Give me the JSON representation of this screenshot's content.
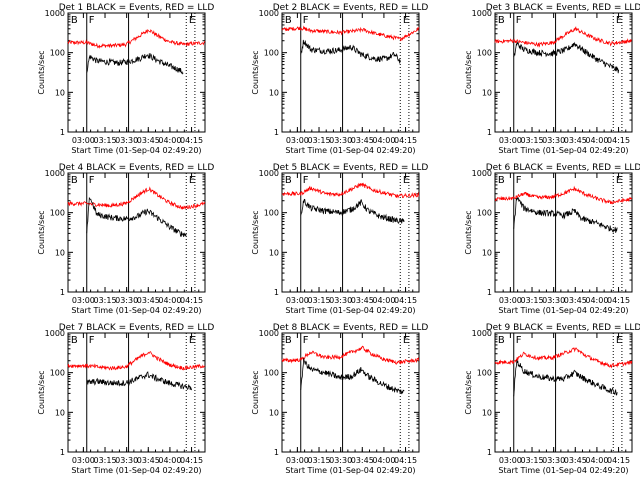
{
  "chart_data": {
    "type": "line",
    "layout": "3x3 grid",
    "xlabel": "Start Time (01-Sep-04 02:49:20)",
    "ylabel": "Counts/sec",
    "y_scale": "log",
    "ylim": [
      1,
      1000
    ],
    "y_ticks": [
      "1",
      "10",
      "100",
      "1000"
    ],
    "x_ticks": [
      "03:00",
      "03:15",
      "03:30",
      "03:45",
      "04:00",
      "04:15"
    ],
    "x_tick_minutes": [
      10.67,
      25.67,
      40.67,
      55.67,
      70.67,
      85.67
    ],
    "x_range_minutes": [
      0,
      95
    ],
    "series_colors": {
      "Events": "#000000",
      "LLD": "#ff0000"
    },
    "markers": {
      "solid_minutes": [
        13,
        42
      ],
      "dotted_minutes": [
        82,
        88
      ],
      "labels": [
        "B",
        "F",
        "E"
      ]
    },
    "panels": [
      {
        "title": "Det 1 BLACK = Events, RED = LLD",
        "events": [
          [
            13,
            35
          ],
          [
            15,
            80
          ],
          [
            20,
            62
          ],
          [
            28,
            58
          ],
          [
            35,
            55
          ],
          [
            42,
            60
          ],
          [
            50,
            72
          ],
          [
            55,
            90
          ],
          [
            60,
            70
          ],
          [
            68,
            50
          ],
          [
            75,
            40
          ],
          [
            80,
            32
          ]
        ],
        "lld": [
          [
            0,
            180
          ],
          [
            13,
            180
          ],
          [
            20,
            150
          ],
          [
            30,
            150
          ],
          [
            40,
            160
          ],
          [
            50,
            270
          ],
          [
            56,
            380
          ],
          [
            62,
            270
          ],
          [
            70,
            190
          ],
          [
            80,
            160
          ],
          [
            95,
            180
          ]
        ]
      },
      {
        "title": "Det 2 BLACK = Events, RED = LLD",
        "events": [
          [
            13,
            90
          ],
          [
            15,
            200
          ],
          [
            20,
            120
          ],
          [
            30,
            110
          ],
          [
            40,
            115
          ],
          [
            48,
            140
          ],
          [
            55,
            90
          ],
          [
            65,
            70
          ],
          [
            72,
            70
          ],
          [
            78,
            90
          ],
          [
            82,
            60
          ]
        ],
        "lld": [
          [
            0,
            380
          ],
          [
            13,
            420
          ],
          [
            20,
            360
          ],
          [
            30,
            340
          ],
          [
            40,
            320
          ],
          [
            50,
            350
          ],
          [
            56,
            380
          ],
          [
            65,
            300
          ],
          [
            75,
            250
          ],
          [
            82,
            220
          ],
          [
            95,
            400
          ]
        ]
      },
      {
        "title": "Det 3 BLACK = Events, RED = LLD",
        "events": [
          [
            13,
            70
          ],
          [
            15,
            170
          ],
          [
            20,
            120
          ],
          [
            30,
            100
          ],
          [
            40,
            95
          ],
          [
            50,
            120
          ],
          [
            55,
            170
          ],
          [
            62,
            110
          ],
          [
            70,
            70
          ],
          [
            80,
            45
          ],
          [
            86,
            35
          ]
        ],
        "lld": [
          [
            0,
            190
          ],
          [
            13,
            200
          ],
          [
            20,
            180
          ],
          [
            30,
            160
          ],
          [
            40,
            180
          ],
          [
            50,
            300
          ],
          [
            56,
            400
          ],
          [
            62,
            300
          ],
          [
            70,
            220
          ],
          [
            80,
            170
          ],
          [
            95,
            200
          ]
        ]
      },
      {
        "title": "Det 4 BLACK = Events, RED = LLD",
        "events": [
          [
            13,
            30
          ],
          [
            15,
            260
          ],
          [
            20,
            90
          ],
          [
            30,
            75
          ],
          [
            40,
            70
          ],
          [
            48,
            80
          ],
          [
            55,
            110
          ],
          [
            62,
            75
          ],
          [
            70,
            45
          ],
          [
            78,
            30
          ],
          [
            82,
            28
          ]
        ],
        "lld": [
          [
            0,
            170
          ],
          [
            13,
            170
          ],
          [
            20,
            160
          ],
          [
            30,
            150
          ],
          [
            40,
            170
          ],
          [
            50,
            300
          ],
          [
            56,
            400
          ],
          [
            62,
            280
          ],
          [
            70,
            180
          ],
          [
            80,
            130
          ],
          [
            95,
            170
          ]
        ]
      },
      {
        "title": "Det 5 BLACK = Events, RED = LLD",
        "events": [
          [
            13,
            80
          ],
          [
            15,
            200
          ],
          [
            20,
            130
          ],
          [
            30,
            110
          ],
          [
            40,
            100
          ],
          [
            48,
            120
          ],
          [
            55,
            180
          ],
          [
            60,
            110
          ],
          [
            68,
            80
          ],
          [
            78,
            65
          ],
          [
            85,
            58
          ]
        ],
        "lld": [
          [
            0,
            300
          ],
          [
            13,
            300
          ],
          [
            20,
            420
          ],
          [
            30,
            300
          ],
          [
            40,
            290
          ],
          [
            50,
            420
          ],
          [
            55,
            520
          ],
          [
            62,
            380
          ],
          [
            70,
            320
          ],
          [
            80,
            260
          ],
          [
            95,
            280
          ]
        ]
      },
      {
        "title": "Det 6 BLACK = Events, RED = LLD",
        "events": [
          [
            13,
            40
          ],
          [
            15,
            250
          ],
          [
            20,
            130
          ],
          [
            30,
            100
          ],
          [
            40,
            95
          ],
          [
            48,
            85
          ],
          [
            55,
            110
          ],
          [
            60,
            70
          ],
          [
            70,
            55
          ],
          [
            80,
            40
          ],
          [
            85,
            36
          ]
        ],
        "lld": [
          [
            0,
            220
          ],
          [
            13,
            230
          ],
          [
            20,
            300
          ],
          [
            30,
            240
          ],
          [
            40,
            250
          ],
          [
            50,
            330
          ],
          [
            55,
            400
          ],
          [
            62,
            300
          ],
          [
            70,
            230
          ],
          [
            80,
            180
          ],
          [
            95,
            220
          ]
        ]
      },
      {
        "title": "Det 7 BLACK = Events, RED = LLD",
        "events": [
          [
            13,
            55
          ],
          [
            20,
            60
          ],
          [
            30,
            55
          ],
          [
            40,
            55
          ],
          [
            48,
            70
          ],
          [
            55,
            90
          ],
          [
            62,
            70
          ],
          [
            70,
            55
          ],
          [
            80,
            45
          ],
          [
            86,
            42
          ]
        ],
        "lld": [
          [
            0,
            150
          ],
          [
            13,
            150
          ],
          [
            20,
            140
          ],
          [
            30,
            130
          ],
          [
            40,
            140
          ],
          [
            50,
            250
          ],
          [
            56,
            330
          ],
          [
            62,
            230
          ],
          [
            70,
            160
          ],
          [
            80,
            130
          ],
          [
            95,
            150
          ]
        ]
      },
      {
        "title": "Det 8 BLACK = Events, RED = LLD",
        "events": [
          [
            13,
            40
          ],
          [
            15,
            200
          ],
          [
            20,
            120
          ],
          [
            30,
            100
          ],
          [
            40,
            75
          ],
          [
            48,
            80
          ],
          [
            55,
            120
          ],
          [
            60,
            80
          ],
          [
            70,
            50
          ],
          [
            80,
            35
          ],
          [
            85,
            32
          ]
        ],
        "lld": [
          [
            0,
            200
          ],
          [
            13,
            210
          ],
          [
            20,
            330
          ],
          [
            30,
            240
          ],
          [
            40,
            250
          ],
          [
            50,
            350
          ],
          [
            56,
            420
          ],
          [
            62,
            300
          ],
          [
            70,
            220
          ],
          [
            80,
            180
          ],
          [
            95,
            210
          ]
        ]
      },
      {
        "title": "Det 9 BLACK = Events, RED = LLD",
        "events": [
          [
            13,
            30
          ],
          [
            15,
            200
          ],
          [
            20,
            110
          ],
          [
            30,
            80
          ],
          [
            40,
            70
          ],
          [
            48,
            70
          ],
          [
            55,
            100
          ],
          [
            62,
            70
          ],
          [
            70,
            50
          ],
          [
            80,
            35
          ],
          [
            85,
            32
          ]
        ],
        "lld": [
          [
            0,
            180
          ],
          [
            13,
            190
          ],
          [
            20,
            300
          ],
          [
            30,
            230
          ],
          [
            40,
            240
          ],
          [
            50,
            330
          ],
          [
            56,
            400
          ],
          [
            62,
            280
          ],
          [
            70,
            200
          ],
          [
            80,
            150
          ],
          [
            95,
            180
          ]
        ]
      }
    ]
  }
}
